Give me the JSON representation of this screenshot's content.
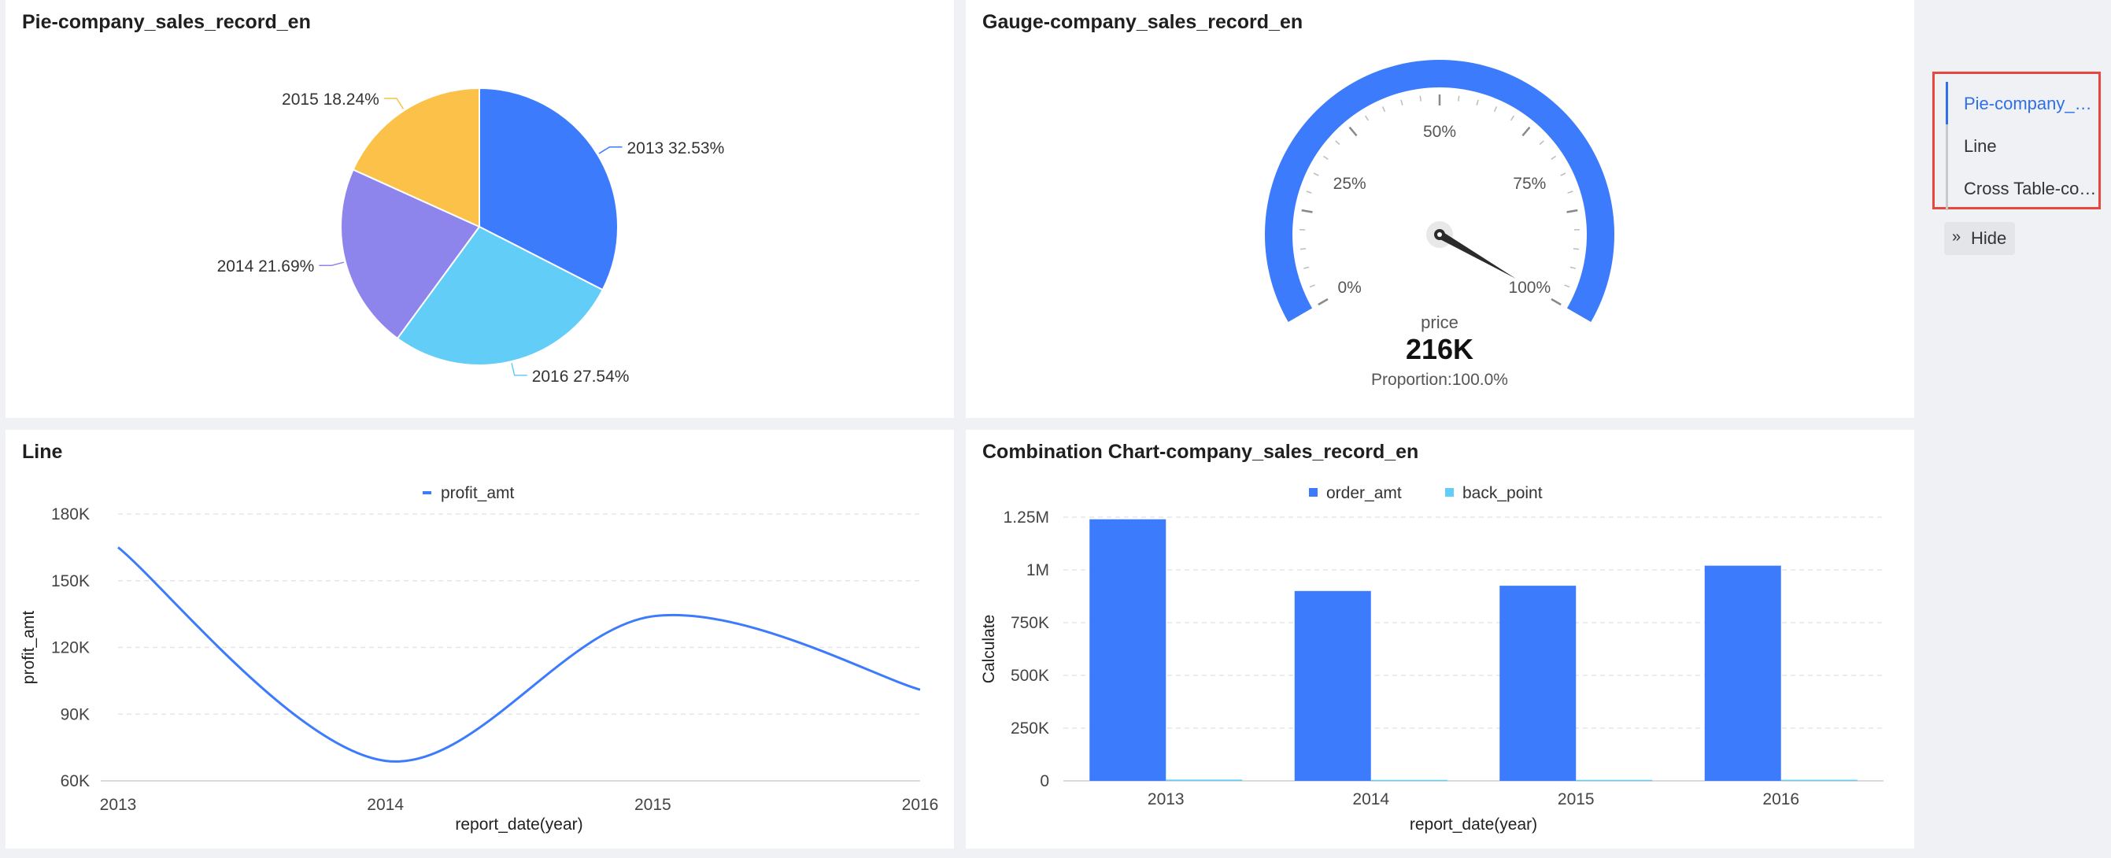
{
  "pie": {
    "title": "Pie-company_sales_record_en",
    "chart_data": {
      "type": "pie",
      "slices": [
        {
          "label": "2013",
          "value": 32.53,
          "text": "2013 32.53%",
          "color": "#3d7bfd"
        },
        {
          "label": "2016",
          "value": 27.54,
          "text": "2016 27.54%",
          "color": "#62cdf6"
        },
        {
          "label": "2014",
          "value": 21.69,
          "text": "2014 21.69%",
          "color": "#8d84ec"
        },
        {
          "label": "2015",
          "value": 18.24,
          "text": "2015 18.24%",
          "color": "#fbc148"
        }
      ]
    }
  },
  "gauge": {
    "title": "Gauge-company_sales_record_en",
    "chart_data": {
      "type": "gauge",
      "ticks": [
        "0%",
        "25%",
        "50%",
        "75%",
        "100%"
      ],
      "proportion": 100.0,
      "measure_label": "price",
      "value_text": "216K",
      "proportion_text": "Proportion:100.0%",
      "color": "#3d7bfd"
    }
  },
  "line": {
    "title": "Line",
    "chart_data": {
      "type": "line",
      "x": [
        "2013",
        "2014",
        "2015",
        "2016"
      ],
      "series": [
        {
          "name": "profit_amt",
          "values": [
            165000,
            69000,
            134000,
            101000
          ],
          "color": "#3d7bfd"
        }
      ],
      "xlabel": "report_date(year)",
      "ylabel": "profit_amt",
      "ylim": [
        60000,
        180000
      ],
      "yticks": [
        {
          "value": 60000,
          "label": "60K"
        },
        {
          "value": 90000,
          "label": "90K"
        },
        {
          "value": 120000,
          "label": "120K"
        },
        {
          "value": 150000,
          "label": "150K"
        },
        {
          "value": 180000,
          "label": "180K"
        }
      ],
      "legend_position": "top-center",
      "grid": true
    }
  },
  "combo": {
    "title": "Combination Chart-company_sales_record_en",
    "chart_data": {
      "type": "bar",
      "categories": [
        "2013",
        "2014",
        "2015",
        "2016"
      ],
      "series": [
        {
          "name": "order_amt",
          "values": [
            1240000,
            900000,
            925000,
            1020000
          ],
          "color": "#3d7bfd"
        },
        {
          "name": "back_point",
          "values": [
            6000,
            4500,
            4600,
            5100
          ],
          "color": "#62cdf6"
        }
      ],
      "xlabel": "report_date(year)",
      "ylabel": "Calculate",
      "ylim": [
        0,
        1250000
      ],
      "yticks": [
        {
          "value": 0,
          "label": "0"
        },
        {
          "value": 250000,
          "label": "250K"
        },
        {
          "value": 500000,
          "label": "500K"
        },
        {
          "value": 750000,
          "label": "750K"
        },
        {
          "value": 1000000,
          "label": "1M"
        },
        {
          "value": 1250000,
          "label": "1.25M"
        }
      ],
      "legend_position": "top-center",
      "grid": true
    }
  },
  "nav": {
    "items": [
      {
        "label": "Pie-company_sales_record_en",
        "active": true
      },
      {
        "label": "Line",
        "active": false
      },
      {
        "label": "Cross Table-company_sales_record_en",
        "active": false
      }
    ],
    "hide_label": "Hide"
  }
}
